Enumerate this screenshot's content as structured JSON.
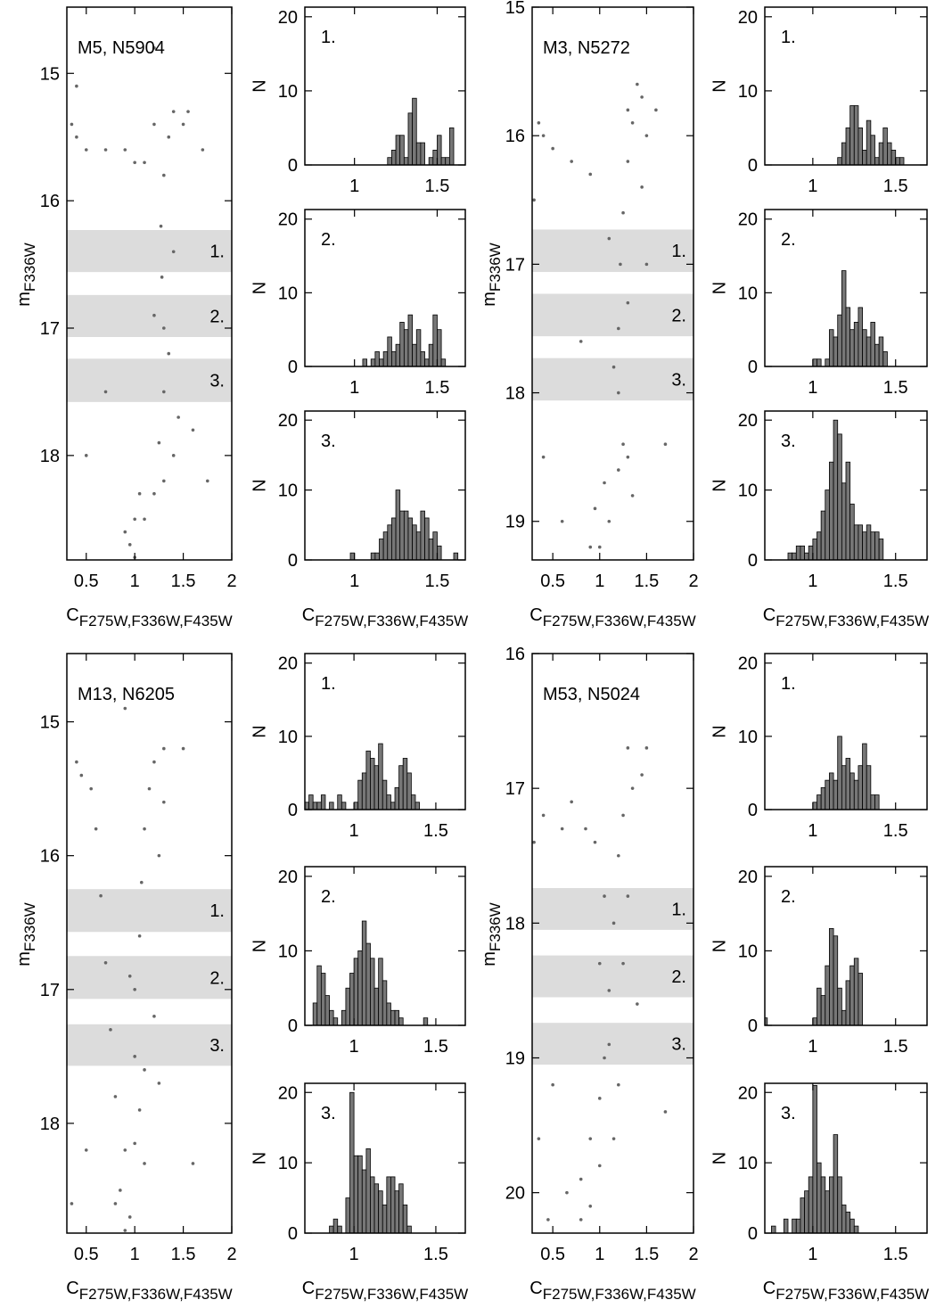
{
  "chart_data": [
    {
      "type": "scatter",
      "title": "M5, N5904",
      "xlabel": "C",
      "xlabel_sub": "F275W,F336W,F435W",
      "ylabel": "m",
      "ylabel_sub": "F336W",
      "xlim": [
        0.3,
        2.0
      ],
      "ylim": [
        18.82,
        14.48
      ],
      "xticks": [
        0.5,
        1,
        1.5,
        2
      ],
      "yticks": [
        15,
        16,
        17,
        18
      ],
      "color": "#666666",
      "bands": [
        {
          "label": "1.",
          "range": [
            16.23,
            16.56
          ]
        },
        {
          "label": "2.",
          "range": [
            16.74,
            17.07
          ]
        },
        {
          "label": "3.",
          "range": [
            17.24,
            17.58
          ]
        }
      ],
      "x": [
        1.0,
        1.0,
        1.05,
        1.2,
        1.3,
        1.25,
        1.3,
        1.3,
        1.28,
        1.27,
        1.3,
        1.35,
        1.4,
        1.2,
        1.5,
        1.7,
        0.4,
        0.5,
        0.7,
        0.9,
        1.0,
        1.1,
        0.35,
        1.55,
        0.95,
        0.9,
        1.1,
        1.4,
        1.45,
        1.35,
        1.2,
        1.4,
        1.6,
        0.7,
        0.5,
        1.75,
        0.4,
        1.2
      ],
      "y": [
        18.8,
        18.5,
        18.3,
        18.3,
        18.2,
        17.9,
        17.5,
        17.0,
        16.6,
        16.2,
        15.8,
        15.5,
        15.3,
        15.4,
        15.4,
        15.6,
        15.5,
        15.6,
        15.6,
        15.6,
        15.7,
        15.7,
        15.4,
        15.3,
        18.7,
        18.6,
        18.5,
        18.0,
        17.7,
        17.2,
        16.9,
        16.4,
        17.8,
        17.5,
        18.0,
        18.2,
        15.1,
        14.8
      ]
    },
    {
      "type": "histogram",
      "annotation": "1.",
      "ylabel": "N",
      "xlim": [
        0.7,
        1.67
      ],
      "ylim": [
        0,
        21.3
      ],
      "xticks": [
        1,
        1.5
      ],
      "yticks": [
        0,
        10,
        20
      ],
      "color": "#777777",
      "bins": [
        1.2,
        1.225,
        1.25,
        1.275,
        1.3,
        1.325,
        1.35,
        1.375,
        1.4,
        1.425,
        1.45,
        1.475,
        1.5,
        1.525,
        1.55,
        1.575,
        1.6
      ],
      "values": [
        1,
        2,
        4,
        4,
        1,
        7,
        9,
        3,
        3,
        0,
        1,
        2,
        4,
        1,
        1,
        5
      ]
    },
    {
      "type": "histogram",
      "annotation": "2.",
      "ylabel": "N",
      "xlim": [
        0.7,
        1.67
      ],
      "ylim": [
        0,
        21.3
      ],
      "xticks": [
        1,
        1.5
      ],
      "yticks": [
        0,
        10,
        20
      ],
      "color": "#777777",
      "bins": [
        1.05,
        1.075,
        1.1,
        1.125,
        1.15,
        1.175,
        1.2,
        1.225,
        1.25,
        1.275,
        1.3,
        1.325,
        1.35,
        1.375,
        1.4,
        1.425,
        1.45,
        1.475,
        1.5,
        1.525,
        1.55
      ],
      "values": [
        1,
        0,
        1,
        2,
        1,
        2,
        4,
        2,
        3,
        6,
        5,
        7,
        3,
        5,
        2,
        1,
        3,
        7,
        5,
        1
      ]
    },
    {
      "type": "histogram",
      "annotation": "3.",
      "ylabel": "N",
      "xlabel": "C",
      "xlabel_sub": "F275W,F336W,F435W",
      "xlim": [
        0.7,
        1.67
      ],
      "ylim": [
        0,
        21.3
      ],
      "xticks": [
        1,
        1.5
      ],
      "yticks": [
        0,
        10,
        20
      ],
      "color": "#777777",
      "bins": [
        0.975,
        1,
        1.025,
        1.05,
        1.075,
        1.1,
        1.125,
        1.15,
        1.175,
        1.2,
        1.225,
        1.25,
        1.275,
        1.3,
        1.325,
        1.35,
        1.375,
        1.4,
        1.425,
        1.45,
        1.475,
        1.5,
        1.525,
        1.55,
        1.575,
        1.6,
        1.625
      ],
      "values": [
        1,
        0,
        0,
        0,
        0,
        1,
        1,
        3,
        4,
        5,
        6,
        10,
        7,
        7,
        6,
        5,
        4,
        7,
        6,
        3,
        4,
        2,
        0,
        0,
        0,
        1
      ]
    },
    {
      "type": "scatter",
      "title": "M3, N5272",
      "xlabel": "C",
      "xlabel_sub": "F275W,F336W,F435W",
      "ylabel": "m",
      "ylabel_sub": "F336W",
      "xlim": [
        0.28,
        2.0
      ],
      "ylim": [
        19.3,
        15.0
      ],
      "xticks": [
        0.5,
        1,
        1.5,
        2
      ],
      "yticks": [
        15,
        16,
        17,
        18,
        19
      ],
      "color": "#666666",
      "bands": [
        {
          "label": "1.",
          "range": [
            16.73,
            17.06
          ]
        },
        {
          "label": "2.",
          "range": [
            17.23,
            17.56
          ]
        },
        {
          "label": "3.",
          "range": [
            17.73,
            18.06
          ]
        }
      ],
      "x": [
        1.0,
        0.95,
        1.05,
        1.2,
        1.25,
        1.2,
        1.2,
        1.22,
        1.25,
        1.3,
        1.35,
        1.4,
        1.45,
        1.3,
        0.4,
        0.5,
        0.7,
        0.9,
        0.35,
        1.5,
        1.1,
        0.9,
        1.3,
        1.15,
        1.3,
        1.1,
        1.45,
        0.8,
        0.4,
        1.7,
        1.6,
        0.6,
        1.5,
        1.35,
        0.3
      ],
      "y": [
        19.2,
        18.9,
        18.7,
        18.6,
        18.4,
        18.0,
        17.5,
        17.0,
        16.6,
        16.2,
        15.9,
        15.6,
        15.7,
        15.8,
        16.0,
        16.1,
        16.2,
        16.3,
        15.9,
        16.0,
        19.0,
        19.2,
        18.5,
        17.8,
        17.3,
        16.8,
        16.4,
        17.6,
        18.5,
        18.4,
        15.8,
        19.0,
        17.0,
        18.8,
        16.5
      ]
    },
    {
      "type": "histogram",
      "annotation": "1.",
      "ylabel": "N",
      "xlim": [
        0.71,
        1.69
      ],
      "ylim": [
        0,
        21.3
      ],
      "xticks": [
        1,
        1.5
      ],
      "yticks": [
        0,
        10,
        20
      ],
      "color": "#777777",
      "bins": [
        1.15,
        1.175,
        1.2,
        1.225,
        1.25,
        1.275,
        1.3,
        1.325,
        1.35,
        1.375,
        1.4,
        1.425,
        1.45,
        1.475,
        1.5,
        1.525,
        1.55
      ],
      "values": [
        1,
        3,
        5,
        8,
        8,
        5,
        2,
        6,
        4,
        1,
        3,
        5,
        3,
        2,
        1,
        1
      ]
    },
    {
      "type": "histogram",
      "annotation": "2.",
      "ylabel": "N",
      "xlim": [
        0.71,
        1.69
      ],
      "ylim": [
        0,
        21.3
      ],
      "xticks": [
        1,
        1.5
      ],
      "yticks": [
        0,
        10,
        20
      ],
      "color": "#777777",
      "bins": [
        1,
        1.025,
        1.05,
        1.075,
        1.1,
        1.125,
        1.15,
        1.175,
        1.2,
        1.225,
        1.25,
        1.275,
        1.3,
        1.325,
        1.35,
        1.375,
        1.4,
        1.425,
        1.45
      ],
      "values": [
        1,
        1,
        0,
        1,
        5,
        4,
        7,
        13,
        8,
        5,
        6,
        8,
        5,
        4,
        6,
        3,
        4,
        2
      ]
    },
    {
      "type": "histogram",
      "annotation": "3.",
      "ylabel": "N",
      "xlabel": "C",
      "xlabel_sub": "F275W,F336W,F435W",
      "xlim": [
        0.71,
        1.69
      ],
      "ylim": [
        0,
        21.3
      ],
      "xticks": [
        1,
        1.5
      ],
      "yticks": [
        0,
        10,
        20
      ],
      "color": "#777777",
      "bins": [
        0.85,
        0.875,
        0.9,
        0.925,
        0.95,
        0.975,
        1,
        1.025,
        1.05,
        1.075,
        1.1,
        1.125,
        1.15,
        1.175,
        1.2,
        1.225,
        1.25,
        1.275,
        1.3,
        1.325,
        1.35,
        1.375,
        1.4,
        1.425,
        1.45
      ],
      "values": [
        1,
        1,
        2,
        2,
        1,
        2,
        3,
        4,
        7,
        10,
        14,
        20,
        18,
        11,
        14,
        8,
        5,
        5,
        4,
        5,
        4,
        4,
        3,
        0
      ]
    },
    {
      "type": "scatter",
      "title": "M13, N6205",
      "xlabel": "C",
      "xlabel_sub": "F275W,F336W,F435W",
      "ylabel": "m",
      "ylabel_sub": "F336W",
      "xlim": [
        0.3,
        2.0
      ],
      "ylim": [
        18.82,
        14.49
      ],
      "xticks": [
        0.5,
        1,
        1.5,
        2
      ],
      "yticks": [
        15,
        16,
        17,
        18
      ],
      "color": "#666666",
      "bands": [
        {
          "label": "1.",
          "range": [
            16.25,
            16.57
          ]
        },
        {
          "label": "2.",
          "range": [
            16.75,
            17.07
          ]
        },
        {
          "label": "3.",
          "range": [
            17.26,
            17.57
          ]
        }
      ],
      "x": [
        0.9,
        0.85,
        0.9,
        1.0,
        1.05,
        1.0,
        1.0,
        1.05,
        1.07,
        1.1,
        1.15,
        1.2,
        1.3,
        1.5,
        0.45,
        0.6,
        0.65,
        0.7,
        0.75,
        0.8,
        0.4,
        0.55,
        0.95,
        0.8,
        1.1,
        1.1,
        1.2,
        0.95,
        1.25,
        1.3,
        0.5,
        0.35,
        0.9,
        1.25,
        1.6
      ],
      "y": [
        18.8,
        18.5,
        18.2,
        18.15,
        17.9,
        17.5,
        17.0,
        16.6,
        16.2,
        15.8,
        15.5,
        15.3,
        15.2,
        15.2,
        15.4,
        15.8,
        16.3,
        16.8,
        17.3,
        17.8,
        15.3,
        15.5,
        18.7,
        18.6,
        18.3,
        17.6,
        17.2,
        16.9,
        16.0,
        15.6,
        18.2,
        18.6,
        14.9,
        17.7,
        18.3
      ]
    },
    {
      "type": "histogram",
      "annotation": "1.",
      "ylabel": "N",
      "xlim": [
        0.7,
        1.68
      ],
      "ylim": [
        0,
        21.3
      ],
      "xticks": [
        1,
        1.5
      ],
      "yticks": [
        0,
        10,
        20
      ],
      "color": "#777777",
      "bins": [
        0.7,
        0.725,
        0.75,
        0.775,
        0.8,
        0.825,
        0.85,
        0.875,
        0.9,
        0.925,
        0.95,
        0.975,
        1,
        1.025,
        1.05,
        1.075,
        1.1,
        1.125,
        1.15,
        1.175,
        1.2,
        1.225,
        1.25,
        1.275,
        1.3,
        1.325,
        1.35,
        1.375,
        1.4
      ],
      "values": [
        1,
        2,
        1,
        1,
        2,
        0,
        1,
        0,
        2,
        1,
        0,
        0,
        1,
        4,
        5,
        8,
        7,
        6,
        9,
        4,
        2,
        1,
        3,
        6,
        7,
        5,
        2,
        1
      ]
    },
    {
      "type": "histogram",
      "annotation": "2.",
      "ylabel": "N",
      "xlim": [
        0.7,
        1.68
      ],
      "ylim": [
        0,
        21.3
      ],
      "xticks": [
        1,
        1.5
      ],
      "yticks": [
        0,
        10,
        20
      ],
      "color": "#777777",
      "bins": [
        0.75,
        0.775,
        0.8,
        0.825,
        0.85,
        0.875,
        0.9,
        0.925,
        0.95,
        0.975,
        1,
        1.025,
        1.05,
        1.075,
        1.1,
        1.125,
        1.15,
        1.175,
        1.2,
        1.225,
        1.25,
        1.275,
        1.3,
        1.325,
        1.35,
        1.375,
        1.4,
        1.425,
        1.45
      ],
      "values": [
        3,
        8,
        7,
        4,
        2,
        1,
        0,
        2,
        5,
        7,
        9,
        10,
        14,
        11,
        9,
        5,
        9,
        6,
        3,
        2,
        2,
        1,
        0,
        0,
        0,
        0,
        0,
        1
      ]
    },
    {
      "type": "histogram",
      "annotation": "3.",
      "ylabel": "N",
      "xlabel": "C",
      "xlabel_sub": "F275W,F336W,F435W",
      "xlim": [
        0.7,
        1.68
      ],
      "ylim": [
        0,
        21.3
      ],
      "xticks": [
        1,
        1.5
      ],
      "yticks": [
        0,
        10,
        20
      ],
      "color": "#777777",
      "bins": [
        0.85,
        0.875,
        0.9,
        0.925,
        0.95,
        0.975,
        1,
        1.025,
        1.05,
        1.075,
        1.1,
        1.125,
        1.15,
        1.175,
        1.2,
        1.225,
        1.25,
        1.275,
        1.3,
        1.325,
        1.35
      ],
      "values": [
        1,
        2,
        1,
        0,
        5,
        20,
        11,
        11,
        9,
        12,
        8,
        7,
        6,
        4,
        8,
        8,
        6,
        7,
        4,
        1
      ]
    },
    {
      "type": "scatter",
      "title": "M53, N5024",
      "xlabel": "C",
      "xlabel_sub": "F275W,F336W,F435W",
      "ylabel": "m",
      "ylabel_sub": "F336W",
      "xlim": [
        0.28,
        2.0
      ],
      "ylim": [
        20.3,
        16.0
      ],
      "xticks": [
        0.5,
        1,
        1.5,
        2
      ],
      "yticks": [
        16,
        17,
        18,
        19,
        20
      ],
      "color": "#666666",
      "bands": [
        {
          "label": "1.",
          "range": [
            17.74,
            18.05
          ]
        },
        {
          "label": "2.",
          "range": [
            18.24,
            18.55
          ]
        },
        {
          "label": "3.",
          "range": [
            18.74,
            19.05
          ]
        }
      ],
      "x": [
        0.8,
        0.8,
        0.9,
        1.0,
        1.05,
        1.1,
        1.15,
        1.2,
        1.25,
        1.35,
        1.45,
        1.3,
        1.5,
        0.95,
        0.85,
        0.6,
        0.4,
        0.3,
        0.7,
        0.9,
        0.65,
        1.0,
        1.2,
        1.1,
        1.25,
        1.05,
        0.5,
        0.35,
        1.4,
        1.7,
        0.45,
        1.15,
        1.3,
        1.0
      ],
      "y": [
        20.2,
        19.9,
        19.6,
        19.3,
        19.0,
        18.5,
        18.0,
        17.5,
        17.2,
        17.0,
        16.9,
        16.7,
        16.7,
        17.4,
        17.3,
        17.3,
        17.2,
        17.4,
        17.1,
        20.1,
        20.0,
        19.8,
        19.2,
        18.9,
        18.3,
        17.8,
        19.2,
        19.6,
        18.6,
        19.4,
        20.2,
        19.6,
        17.8,
        18.3
      ]
    },
    {
      "type": "histogram",
      "annotation": "1.",
      "ylabel": "N",
      "xlim": [
        0.71,
        1.69
      ],
      "ylim": [
        0,
        21.3
      ],
      "xticks": [
        1,
        1.5
      ],
      "yticks": [
        0,
        10,
        20
      ],
      "color": "#777777",
      "bins": [
        1,
        1.025,
        1.05,
        1.075,
        1.1,
        1.125,
        1.15,
        1.175,
        1.2,
        1.225,
        1.25,
        1.275,
        1.3,
        1.325,
        1.35,
        1.375,
        1.4
      ],
      "values": [
        1,
        2,
        3,
        4,
        5,
        4,
        10,
        6,
        7,
        5,
        4,
        6,
        9,
        6,
        2,
        2
      ]
    },
    {
      "type": "histogram",
      "annotation": "2.",
      "ylabel": "N",
      "xlim": [
        0.71,
        1.69
      ],
      "ylim": [
        0,
        21.3
      ],
      "xticks": [
        1,
        1.5
      ],
      "yticks": [
        0,
        10,
        20
      ],
      "color": "#777777",
      "bins": [
        0.7,
        0.725,
        0.75,
        0.775,
        0.8,
        0.825,
        0.85,
        0.875,
        0.9,
        0.925,
        0.95,
        0.975,
        1,
        1.025,
        1.05,
        1.075,
        1.1,
        1.125,
        1.15,
        1.175,
        1.2,
        1.225,
        1.25,
        1.275,
        1.3
      ],
      "values": [
        1,
        0,
        0,
        0,
        0,
        0,
        0,
        0,
        0,
        0,
        0,
        0,
        1,
        5,
        4,
        8,
        13,
        12,
        5,
        2,
        6,
        8,
        9,
        7
      ]
    },
    {
      "type": "histogram",
      "annotation": "3.",
      "ylabel": "N",
      "xlabel": "C",
      "xlabel_sub": "F275W,F336W,F435W",
      "xlim": [
        0.71,
        1.69
      ],
      "ylim": [
        0,
        21.3
      ],
      "xticks": [
        1,
        1.5
      ],
      "yticks": [
        0,
        10,
        20
      ],
      "color": "#777777",
      "bins": [
        0.75,
        0.775,
        0.8,
        0.825,
        0.85,
        0.875,
        0.9,
        0.925,
        0.95,
        0.975,
        1,
        1.025,
        1.05,
        1.075,
        1.1,
        1.125,
        1.15,
        1.175,
        1.2,
        1.225,
        1.25,
        1.275,
        1.3,
        1.325,
        1.35
      ],
      "values": [
        1,
        0,
        0,
        2,
        0,
        2,
        2,
        5,
        6,
        8,
        21,
        10,
        8,
        6,
        8,
        14,
        8,
        4,
        3,
        2,
        1,
        0,
        0,
        0
      ]
    }
  ]
}
